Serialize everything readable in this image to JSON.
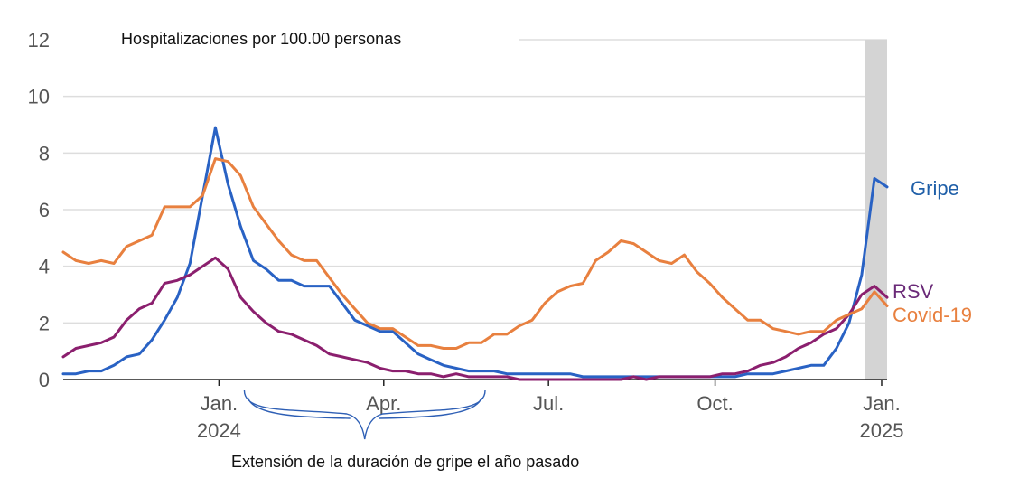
{
  "chart_data": {
    "type": "line",
    "title": "Hospitalizaciones por 100.00 personas",
    "ylim": [
      0,
      12
    ],
    "yticks": [
      0,
      2,
      4,
      6,
      8,
      10,
      12
    ],
    "grid": true,
    "x": [
      "2023-10-07",
      "2023-10-14",
      "2023-10-21",
      "2023-10-28",
      "2023-11-04",
      "2023-11-11",
      "2023-11-18",
      "2023-11-25",
      "2023-12-02",
      "2023-12-09",
      "2023-12-16",
      "2023-12-23",
      "2023-12-30",
      "2024-01-06",
      "2024-01-13",
      "2024-01-20",
      "2024-01-27",
      "2024-02-03",
      "2024-02-10",
      "2024-02-17",
      "2024-02-24",
      "2024-03-02",
      "2024-03-09",
      "2024-03-16",
      "2024-03-23",
      "2024-03-30",
      "2024-04-06",
      "2024-04-13",
      "2024-04-20",
      "2024-04-27",
      "2024-05-04",
      "2024-05-11",
      "2024-05-18",
      "2024-05-25",
      "2024-06-01",
      "2024-06-08",
      "2024-06-15",
      "2024-06-22",
      "2024-06-29",
      "2024-07-06",
      "2024-07-13",
      "2024-07-20",
      "2024-07-27",
      "2024-08-03",
      "2024-08-10",
      "2024-08-17",
      "2024-08-24",
      "2024-08-31",
      "2024-09-07",
      "2024-09-14",
      "2024-09-21",
      "2024-09-28",
      "2024-10-05",
      "2024-10-12",
      "2024-10-19",
      "2024-10-26",
      "2024-11-02",
      "2024-11-09",
      "2024-11-16",
      "2024-11-23",
      "2024-11-30",
      "2024-12-07",
      "2024-12-14",
      "2024-12-21",
      "2024-12-28",
      "2025-01-04"
    ],
    "series": [
      {
        "name": "Gripe",
        "color": "#2962c4",
        "label_color": "#1f5fa8",
        "values": [
          0.2,
          0.2,
          0.3,
          0.3,
          0.5,
          0.8,
          0.9,
          1.4,
          2.1,
          2.9,
          4.1,
          6.5,
          8.9,
          6.9,
          5.4,
          4.2,
          3.9,
          3.5,
          3.5,
          3.3,
          3.3,
          3.3,
          2.7,
          2.1,
          1.9,
          1.7,
          1.7,
          1.3,
          0.9,
          0.7,
          0.5,
          0.4,
          0.3,
          0.3,
          0.3,
          0.2,
          0.2,
          0.2,
          0.2,
          0.2,
          0.2,
          0.1,
          0.1,
          0.1,
          0.1,
          0.1,
          0.1,
          0.1,
          0.1,
          0.1,
          0.1,
          0.1,
          0.1,
          0.1,
          0.2,
          0.2,
          0.2,
          0.3,
          0.4,
          0.5,
          0.5,
          1.1,
          2.0,
          3.7,
          7.1,
          6.8
        ]
      },
      {
        "name": "RSV",
        "color": "#8b1f6e",
        "label_color": "#6a2a78",
        "values": [
          0.8,
          1.1,
          1.2,
          1.3,
          1.5,
          2.1,
          2.5,
          2.7,
          3.4,
          3.5,
          3.7,
          4.0,
          4.3,
          3.9,
          2.9,
          2.4,
          2.0,
          1.7,
          1.6,
          1.4,
          1.2,
          0.9,
          0.8,
          0.7,
          0.6,
          0.4,
          0.3,
          0.3,
          0.2,
          0.2,
          0.1,
          0.2,
          0.1,
          0.1,
          0.1,
          0.1,
          0.0,
          0.0,
          0.0,
          0.0,
          0.0,
          0.0,
          0.0,
          0.0,
          0.0,
          0.1,
          0.0,
          0.1,
          0.1,
          0.1,
          0.1,
          0.1,
          0.2,
          0.2,
          0.3,
          0.5,
          0.6,
          0.8,
          1.1,
          1.3,
          1.6,
          1.8,
          2.3,
          3.0,
          3.3,
          2.9
        ]
      },
      {
        "name": "Covid-19",
        "color": "#e8803f",
        "label_color": "#e8803f",
        "values": [
          4.5,
          4.2,
          4.1,
          4.2,
          4.1,
          4.7,
          4.9,
          5.1,
          6.1,
          6.1,
          6.1,
          6.5,
          7.8,
          7.7,
          7.2,
          6.1,
          5.5,
          4.9,
          4.4,
          4.2,
          4.2,
          3.6,
          3.0,
          2.5,
          2.0,
          1.8,
          1.8,
          1.5,
          1.2,
          1.2,
          1.1,
          1.1,
          1.3,
          1.3,
          1.6,
          1.6,
          1.9,
          2.1,
          2.7,
          3.1,
          3.3,
          3.4,
          4.2,
          4.5,
          4.9,
          4.8,
          4.5,
          4.2,
          4.1,
          4.4,
          3.8,
          3.4,
          2.9,
          2.5,
          2.1,
          2.1,
          1.8,
          1.7,
          1.6,
          1.7,
          1.7,
          2.1,
          2.3,
          2.5,
          3.1,
          2.6
        ]
      }
    ],
    "xticks": [
      {
        "date": "2024-01-01",
        "lines": [
          "Jan.",
          "2024"
        ]
      },
      {
        "date": "2024-04-01",
        "lines": [
          "Apr.",
          ""
        ]
      },
      {
        "date": "2024-07-01",
        "lines": [
          "Jul.",
          ""
        ]
      },
      {
        "date": "2024-10-01",
        "lines": [
          "Oct.",
          ""
        ]
      },
      {
        "date": "2025-01-01",
        "lines": [
          "Jan.",
          "2025"
        ]
      }
    ],
    "shaded_range": [
      "2024-12-23",
      "2025-01-05"
    ],
    "annotation": {
      "text": "Extensión de la duración de gripe el año pasado",
      "from": "2024-01-15",
      "to": "2024-05-27"
    }
  }
}
